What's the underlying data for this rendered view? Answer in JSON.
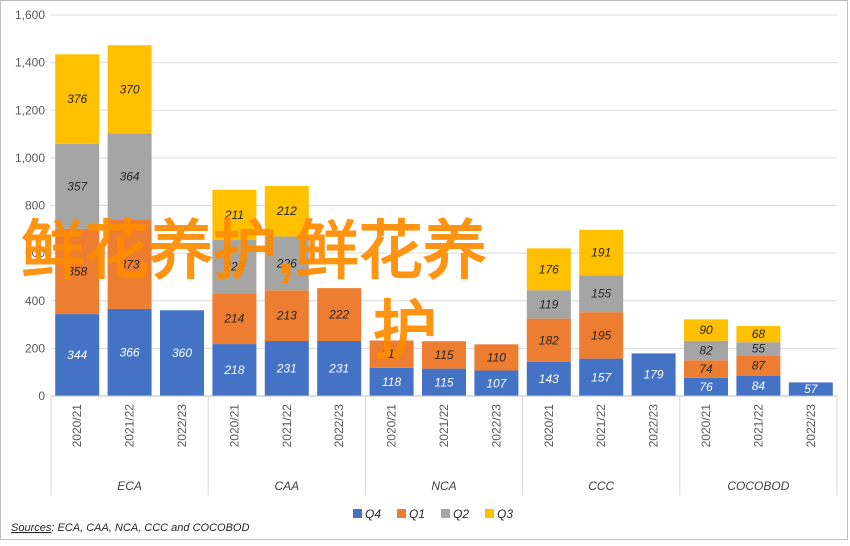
{
  "chart_data": {
    "type": "bar",
    "stacked": true,
    "groups": [
      {
        "name": "ECA",
        "years": [
          "2020/21",
          "2021/22",
          "2022/23"
        ]
      },
      {
        "name": "CAA",
        "years": [
          "2020/21",
          "2021/22",
          "2022/23"
        ]
      },
      {
        "name": "NCA",
        "years": [
          "2020/21",
          "2021/22",
          "2022/23"
        ]
      },
      {
        "name": "CCC",
        "years": [
          "2020/21",
          "2021/22",
          "2022/23"
        ]
      },
      {
        "name": "COCOBOD",
        "years": [
          "2020/21",
          "2021/22",
          "2022/23"
        ]
      }
    ],
    "series": [
      {
        "name": "Q4",
        "color": "#4472c4",
        "values": [
          344,
          366,
          360,
          218,
          231,
          231,
          118,
          115,
          107,
          143,
          157,
          179,
          76,
          84,
          57
        ]
      },
      {
        "name": "Q1",
        "color": "#ed7d31",
        "values": [
          358,
          373,
          0,
          214,
          213,
          222,
          115,
          115,
          110,
          182,
          195,
          0,
          74,
          87,
          0
        ]
      },
      {
        "name": "Q2",
        "color": "#a5a5a5",
        "values": [
          357,
          364,
          0,
          223,
          226,
          0,
          0,
          0,
          0,
          119,
          155,
          0,
          82,
          55,
          0
        ]
      },
      {
        "name": "Q3",
        "color": "#ffc000",
        "values": [
          376,
          370,
          0,
          211,
          212,
          0,
          0,
          0,
          0,
          176,
          191,
          0,
          90,
          68,
          0
        ]
      }
    ],
    "ylim": [
      0,
      1600
    ],
    "yticks": [
      "0",
      "200",
      "400",
      "600",
      "800",
      "1,000",
      "1,200",
      "1,400",
      "1,600"
    ],
    "grid": true,
    "legend": "bottom"
  },
  "source": {
    "label": "Sources",
    "text": ": ECA, CAA, NCA, CCC and COCOBOD"
  },
  "watermark": {
    "line1": "鲜花养护,鲜花养",
    "line2": "护"
  }
}
